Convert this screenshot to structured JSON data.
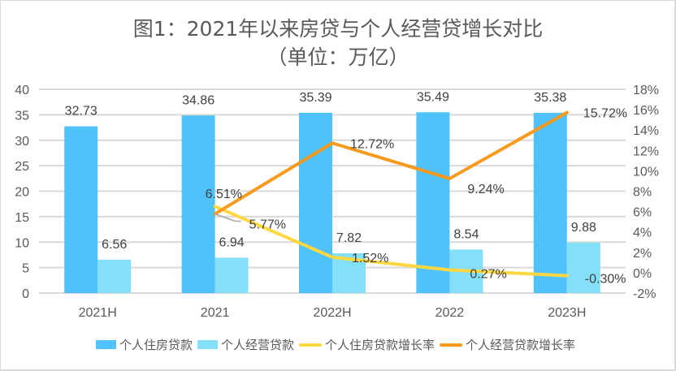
{
  "chart_data": {
    "type": "bar",
    "title": "图1：2021年以来房贷与个人经营贷增长对比",
    "subtitle": "（单位：万亿）",
    "categories": [
      "2021H",
      "2021",
      "2022H",
      "2022",
      "2023H"
    ],
    "series": [
      {
        "name": "个人住房贷款",
        "type": "bar",
        "axis": "left",
        "color": "#4FC1FB",
        "values": [
          32.73,
          34.86,
          35.39,
          35.49,
          35.38
        ],
        "labels": [
          "32.73",
          "34.86",
          "35.39",
          "35.49",
          "35.38"
        ]
      },
      {
        "name": "个人经营贷款",
        "type": "bar",
        "axis": "left",
        "color": "#83E0F8",
        "values": [
          6.56,
          6.94,
          7.82,
          8.54,
          9.88
        ],
        "labels": [
          "6.56",
          "6.94",
          "7.82",
          "8.54",
          "9.88"
        ]
      },
      {
        "name": "个人住房贷款增长率",
        "type": "line",
        "axis": "right",
        "color": "#FFD740",
        "values": [
          null,
          6.51,
          1.52,
          0.27,
          -0.3
        ],
        "labels": [
          null,
          "6.51%",
          "1.52%",
          "0.27%",
          "-0.30%"
        ]
      },
      {
        "name": "个人经营贷款增长率",
        "type": "line",
        "axis": "right",
        "color": "#F79A1E",
        "values": [
          null,
          5.77,
          12.72,
          9.24,
          15.72
        ],
        "labels": [
          null,
          "5.77%",
          "12.72%",
          "9.24%",
          "15.72%"
        ]
      }
    ],
    "y_left": {
      "min": 0,
      "max": 40,
      "step": 5,
      "ticks": [
        "0",
        "5",
        "10",
        "15",
        "20",
        "25",
        "30",
        "35",
        "40"
      ]
    },
    "y_right": {
      "min": -2,
      "max": 18,
      "step": 2,
      "ticks": [
        "-2%",
        "0%",
        "2%",
        "4%",
        "6%",
        "8%",
        "10%",
        "12%",
        "14%",
        "16%",
        "18%"
      ]
    },
    "grid": true,
    "legend_position": "bottom"
  }
}
